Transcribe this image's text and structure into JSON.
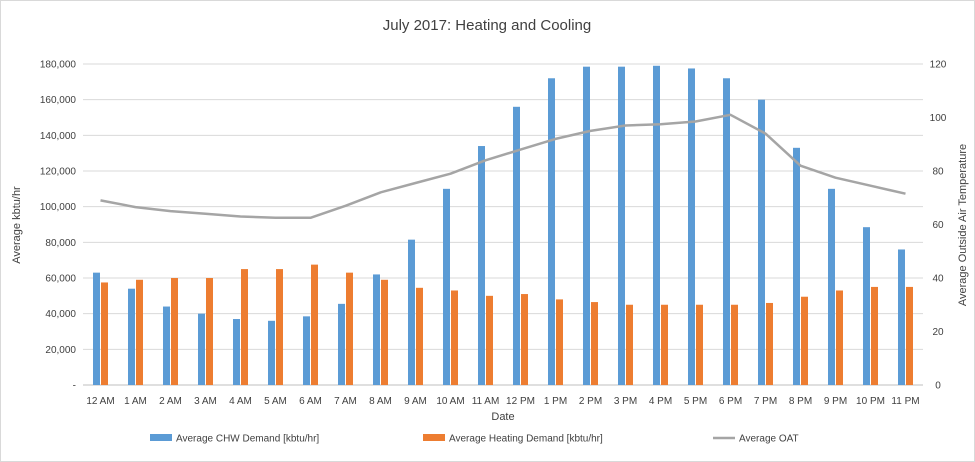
{
  "chart_data": {
    "type": "bar",
    "title": "July 2017: Heating and Cooling",
    "xlabel": "Date",
    "ylabel": "Average kbtu/hr",
    "y2label": "Average Outside Air Temperature",
    "ylim": [
      0,
      180000
    ],
    "y2lim": [
      0,
      120
    ],
    "y_ticks": [
      "-",
      "20,000",
      "40,000",
      "60,000",
      "80,000",
      "100,000",
      "120,000",
      "140,000",
      "160,000",
      "180,000"
    ],
    "y2_ticks": [
      "0",
      "20",
      "40",
      "60",
      "80",
      "100",
      "120"
    ],
    "grid": true,
    "legend_position": "bottom",
    "categories": [
      "12 AM",
      "1 AM",
      "2 AM",
      "3 AM",
      "4 AM",
      "5 AM",
      "6 AM",
      "7 AM",
      "8 AM",
      "9 AM",
      "10 AM",
      "11 AM",
      "12 PM",
      "1 PM",
      "2 PM",
      "3 PM",
      "4 PM",
      "5 PM",
      "6 PM",
      "7 PM",
      "8 PM",
      "9 PM",
      "10 PM",
      "11 PM"
    ],
    "series": [
      {
        "name": "Average CHW Demand [kbtu/hr]",
        "kind": "bar",
        "axis": "left",
        "color": "#5b9bd5",
        "values": [
          63000,
          54000,
          44000,
          40000,
          37000,
          36000,
          38500,
          45500,
          62000,
          81500,
          110000,
          134000,
          156000,
          172000,
          178500,
          178500,
          179000,
          177500,
          172000,
          160000,
          133000,
          110000,
          88500,
          76000
        ]
      },
      {
        "name": "Average Heating Demand [kbtu/hr]",
        "kind": "bar",
        "axis": "left",
        "color": "#ed7d31",
        "values": [
          57500,
          59000,
          60000,
          60000,
          65000,
          65000,
          67500,
          63000,
          59000,
          54500,
          53000,
          50000,
          51000,
          48000,
          46500,
          45000,
          45000,
          45000,
          45000,
          46000,
          49500,
          53000,
          55000,
          55000
        ]
      },
      {
        "name": "Average OAT",
        "kind": "line",
        "axis": "right",
        "color": "#a5a5a5",
        "values": [
          69,
          66.5,
          65,
          64,
          63,
          62.5,
          62.5,
          67,
          72,
          75.5,
          79,
          84,
          88,
          92,
          95,
          97,
          97.5,
          98.5,
          101,
          94,
          82,
          77.5,
          74.5,
          71.5
        ]
      }
    ]
  }
}
